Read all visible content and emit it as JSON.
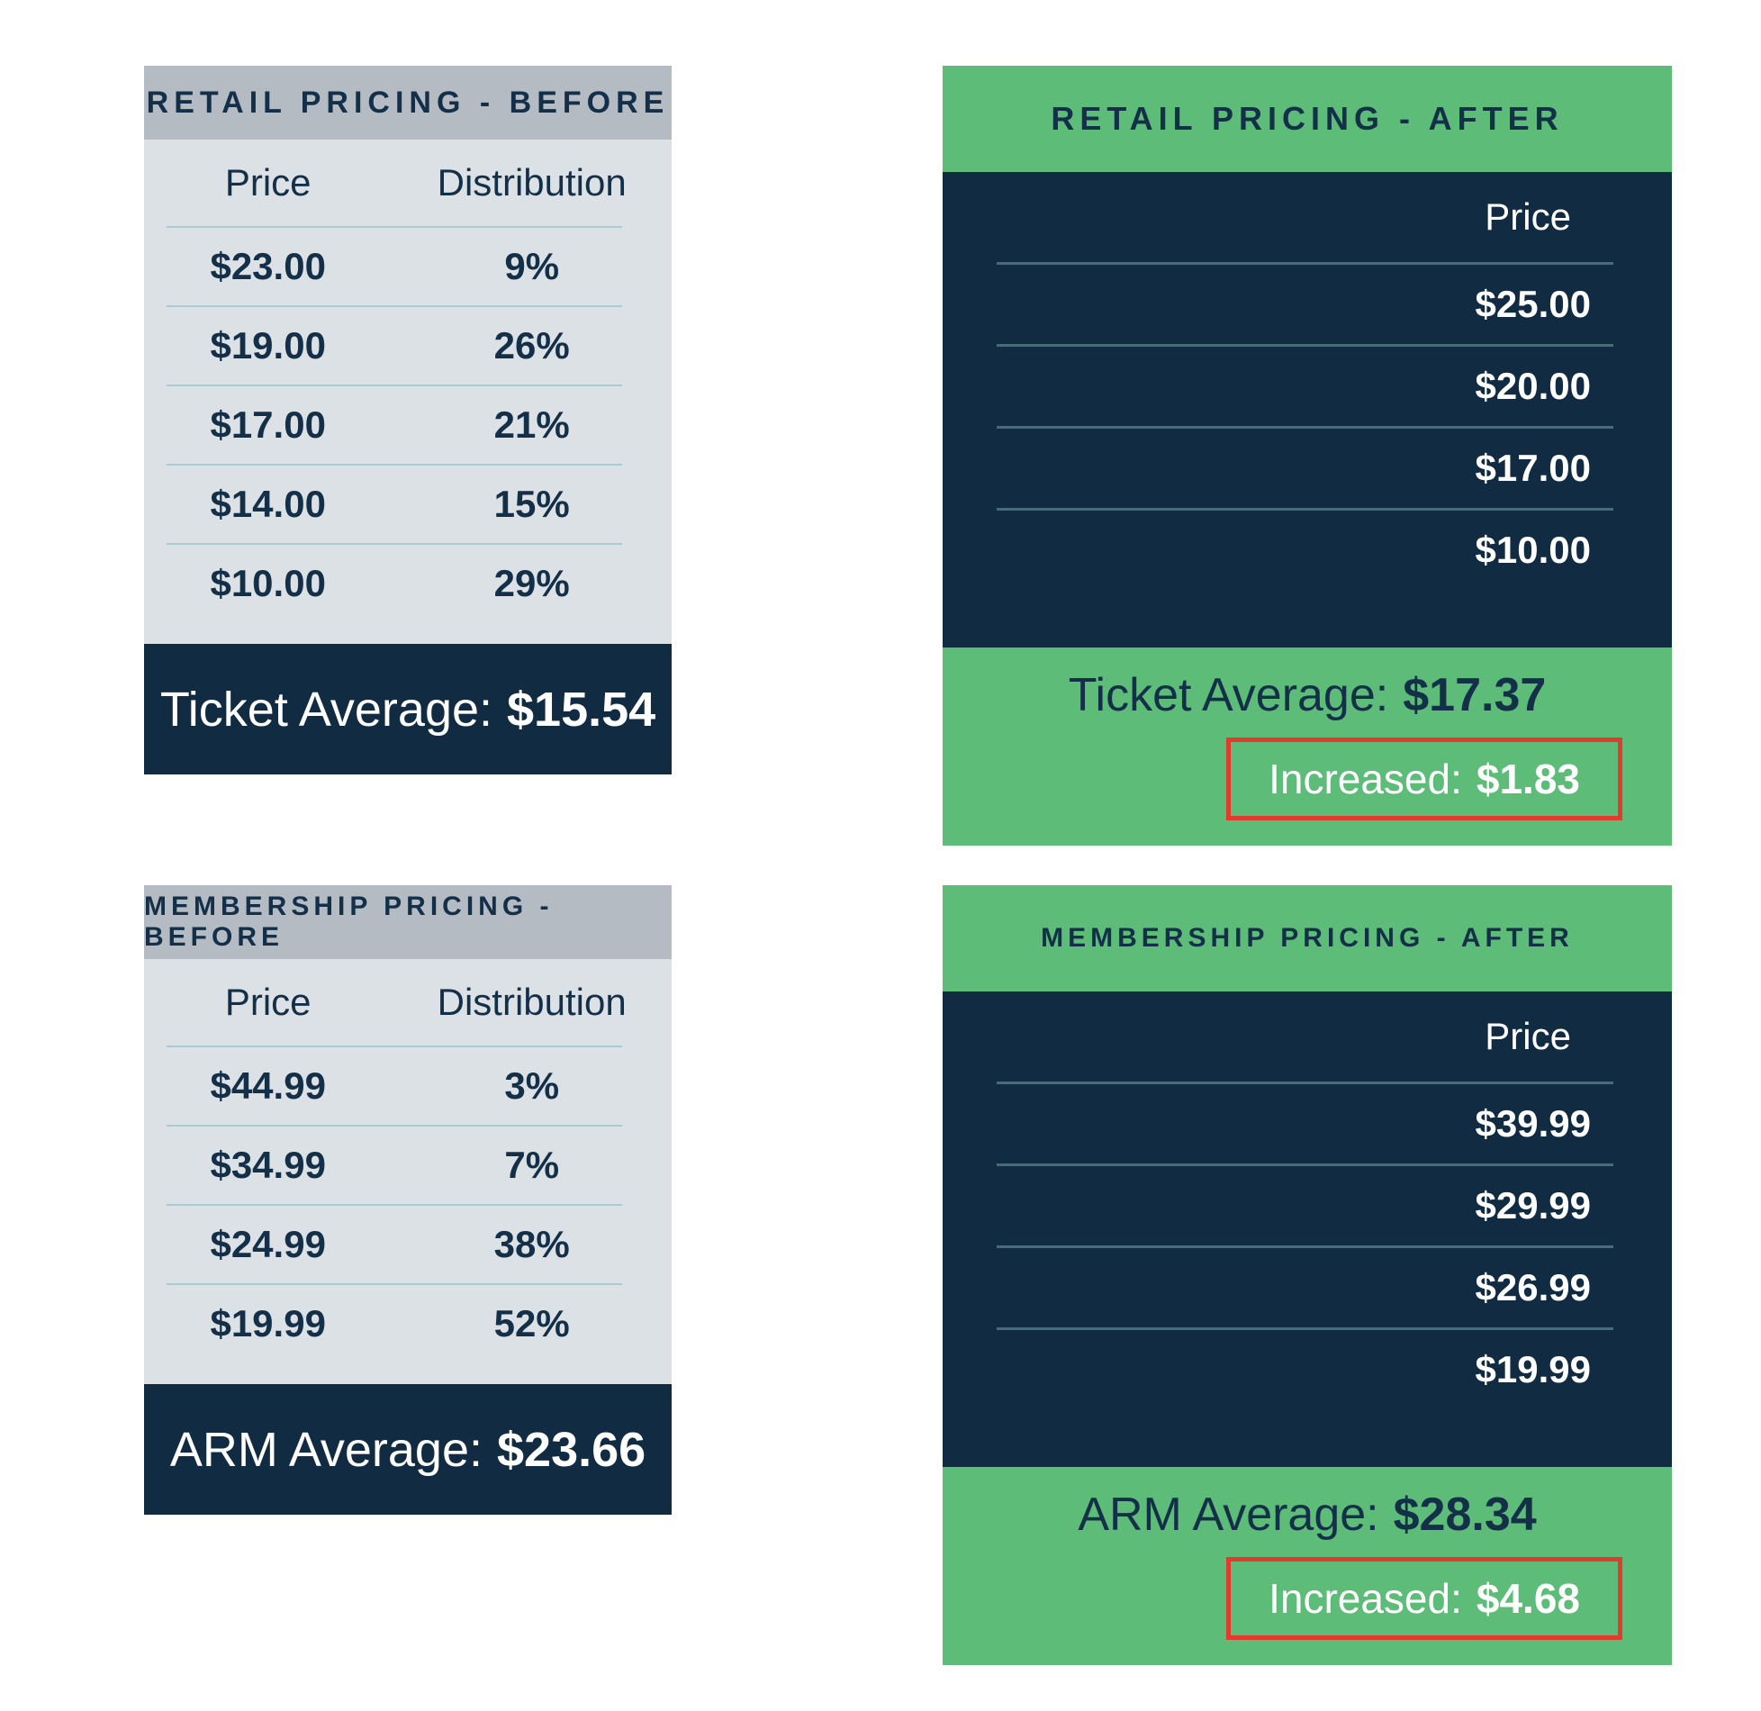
{
  "chart_data": [
    {
      "type": "table",
      "id": "retail-before",
      "title": "RETAIL PRICING - BEFORE",
      "columns": [
        "Price",
        "Distribution"
      ],
      "rows": [
        [
          "$23.00",
          "9%"
        ],
        [
          "$19.00",
          "26%"
        ],
        [
          "$17.00",
          "21%"
        ],
        [
          "$14.00",
          "15%"
        ],
        [
          "$10.00",
          "29%"
        ]
      ],
      "summary": {
        "label": "Ticket Average:",
        "value": "$15.54"
      }
    },
    {
      "type": "table",
      "id": "retail-after",
      "title": "RETAIL PRICING - AFTER",
      "columns": [
        "Price"
      ],
      "rows": [
        [
          "$25.00"
        ],
        [
          "$20.00"
        ],
        [
          "$17.00"
        ],
        [
          "$10.00"
        ]
      ],
      "summary": {
        "label": "Ticket Average:",
        "value": "$17.37"
      },
      "increase": {
        "label": "Increased:",
        "value": "$1.83"
      }
    },
    {
      "type": "table",
      "id": "membership-before",
      "title": "MEMBERSHIP PRICING - BEFORE",
      "columns": [
        "Price",
        "Distribution"
      ],
      "rows": [
        [
          "$44.99",
          "3%"
        ],
        [
          "$34.99",
          "7%"
        ],
        [
          "$24.99",
          "38%"
        ],
        [
          "$19.99",
          "52%"
        ]
      ],
      "summary": {
        "label": "ARM Average:",
        "value": "$23.66"
      }
    },
    {
      "type": "table",
      "id": "membership-after",
      "title": "MEMBERSHIP PRICING - AFTER",
      "columns": [
        "Price"
      ],
      "rows": [
        [
          "$39.99"
        ],
        [
          "$29.99"
        ],
        [
          "$26.99"
        ],
        [
          "$19.99"
        ]
      ],
      "summary": {
        "label": "ARM Average:",
        "value": "$28.34"
      },
      "increase": {
        "label": "Increased:",
        "value": "$4.68"
      }
    }
  ],
  "colors": {
    "navy": "#112c42",
    "navy_text": "#143049",
    "green": "#5cbc78",
    "header_gray": "#b5bbc3",
    "body_gray": "#dce1e6",
    "divider_light": "#a8ccd4",
    "divider_dark": "#4a6b7c",
    "highlight_red": "#e23b2e",
    "white_text": "#ffffff"
  }
}
